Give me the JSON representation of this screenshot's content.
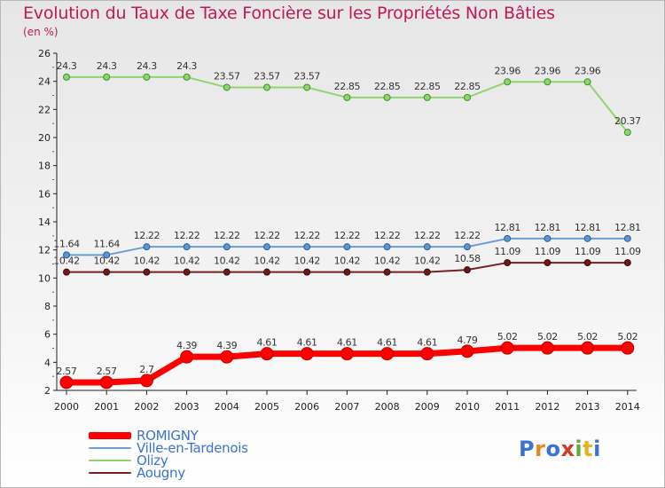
{
  "header": {
    "title": "Evolution du Taux de Taxe Foncière sur les Propriétés Non Bâties",
    "unit": "(en %)"
  },
  "chart_data": {
    "type": "line",
    "title": "Evolution du Taux de Taxe Foncière sur les Propriétés Non Bâties",
    "ylabel": "(en %)",
    "xlabel": "",
    "ylim": [
      2,
      26
    ],
    "yticks": [
      2,
      4,
      6,
      8,
      10,
      12,
      14,
      16,
      18,
      20,
      22,
      24,
      26
    ],
    "grid": false,
    "legend_position": "bottom-left",
    "categories": [
      "2000",
      "2001",
      "2002",
      "2003",
      "2004",
      "2005",
      "2006",
      "2007",
      "2008",
      "2009",
      "2010",
      "2011",
      "2012",
      "2013",
      "2014"
    ],
    "series": [
      {
        "name": "ROMIGNY",
        "color": "#ff0000",
        "values": [
          2.57,
          2.57,
          2.7,
          4.39,
          4.39,
          4.61,
          4.61,
          4.61,
          4.61,
          4.61,
          4.79,
          5.02,
          5.02,
          5.02,
          5.02
        ],
        "labels": [
          "2.57",
          "2.57",
          "2.7",
          "4.39",
          "4.39",
          "4.61",
          "4.61",
          "4.61",
          "4.61",
          "4.61",
          "4.79",
          "5.02",
          "5.02",
          "5.02",
          "5.02"
        ]
      },
      {
        "name": "Ville-en-Tardenois",
        "color": "#6a9fd4",
        "values": [
          11.64,
          11.64,
          12.22,
          12.22,
          12.22,
          12.22,
          12.22,
          12.22,
          12.22,
          12.22,
          12.22,
          12.81,
          12.81,
          12.81,
          12.81
        ],
        "labels": [
          "11.64",
          "11.64",
          "12.22",
          "12.22",
          "12.22",
          "12.22",
          "12.22",
          "12.22",
          "12.22",
          "12.22",
          "12.22",
          "12.81",
          "12.81",
          "12.81",
          "12.81"
        ]
      },
      {
        "name": "Olizy",
        "color": "#8ed66b",
        "values": [
          24.3,
          24.3,
          24.3,
          24.3,
          23.57,
          23.57,
          23.57,
          22.85,
          22.85,
          22.85,
          22.85,
          23.96,
          23.96,
          23.96,
          20.37
        ],
        "labels": [
          "24.3",
          "24.3",
          "24.3",
          "24.3",
          "23.57",
          "23.57",
          "23.57",
          "22.85",
          "22.85",
          "22.85",
          "22.85",
          "23.96",
          "23.96",
          "23.96",
          "20.37"
        ]
      },
      {
        "name": "Aougny",
        "color": "#7a1f1f",
        "values": [
          10.42,
          10.42,
          10.42,
          10.42,
          10.42,
          10.42,
          10.42,
          10.42,
          10.42,
          10.42,
          10.58,
          11.09,
          11.09,
          11.09,
          11.09
        ],
        "labels": [
          "10.42",
          "10.42",
          "10.42",
          "10.42",
          "10.42",
          "10.42",
          "10.42",
          "10.42",
          "10.42",
          "10.42",
          "10.58",
          "11.09",
          "11.09",
          "11.09",
          "11.09"
        ]
      }
    ]
  },
  "logo": {
    "text": "Proxiti"
  }
}
